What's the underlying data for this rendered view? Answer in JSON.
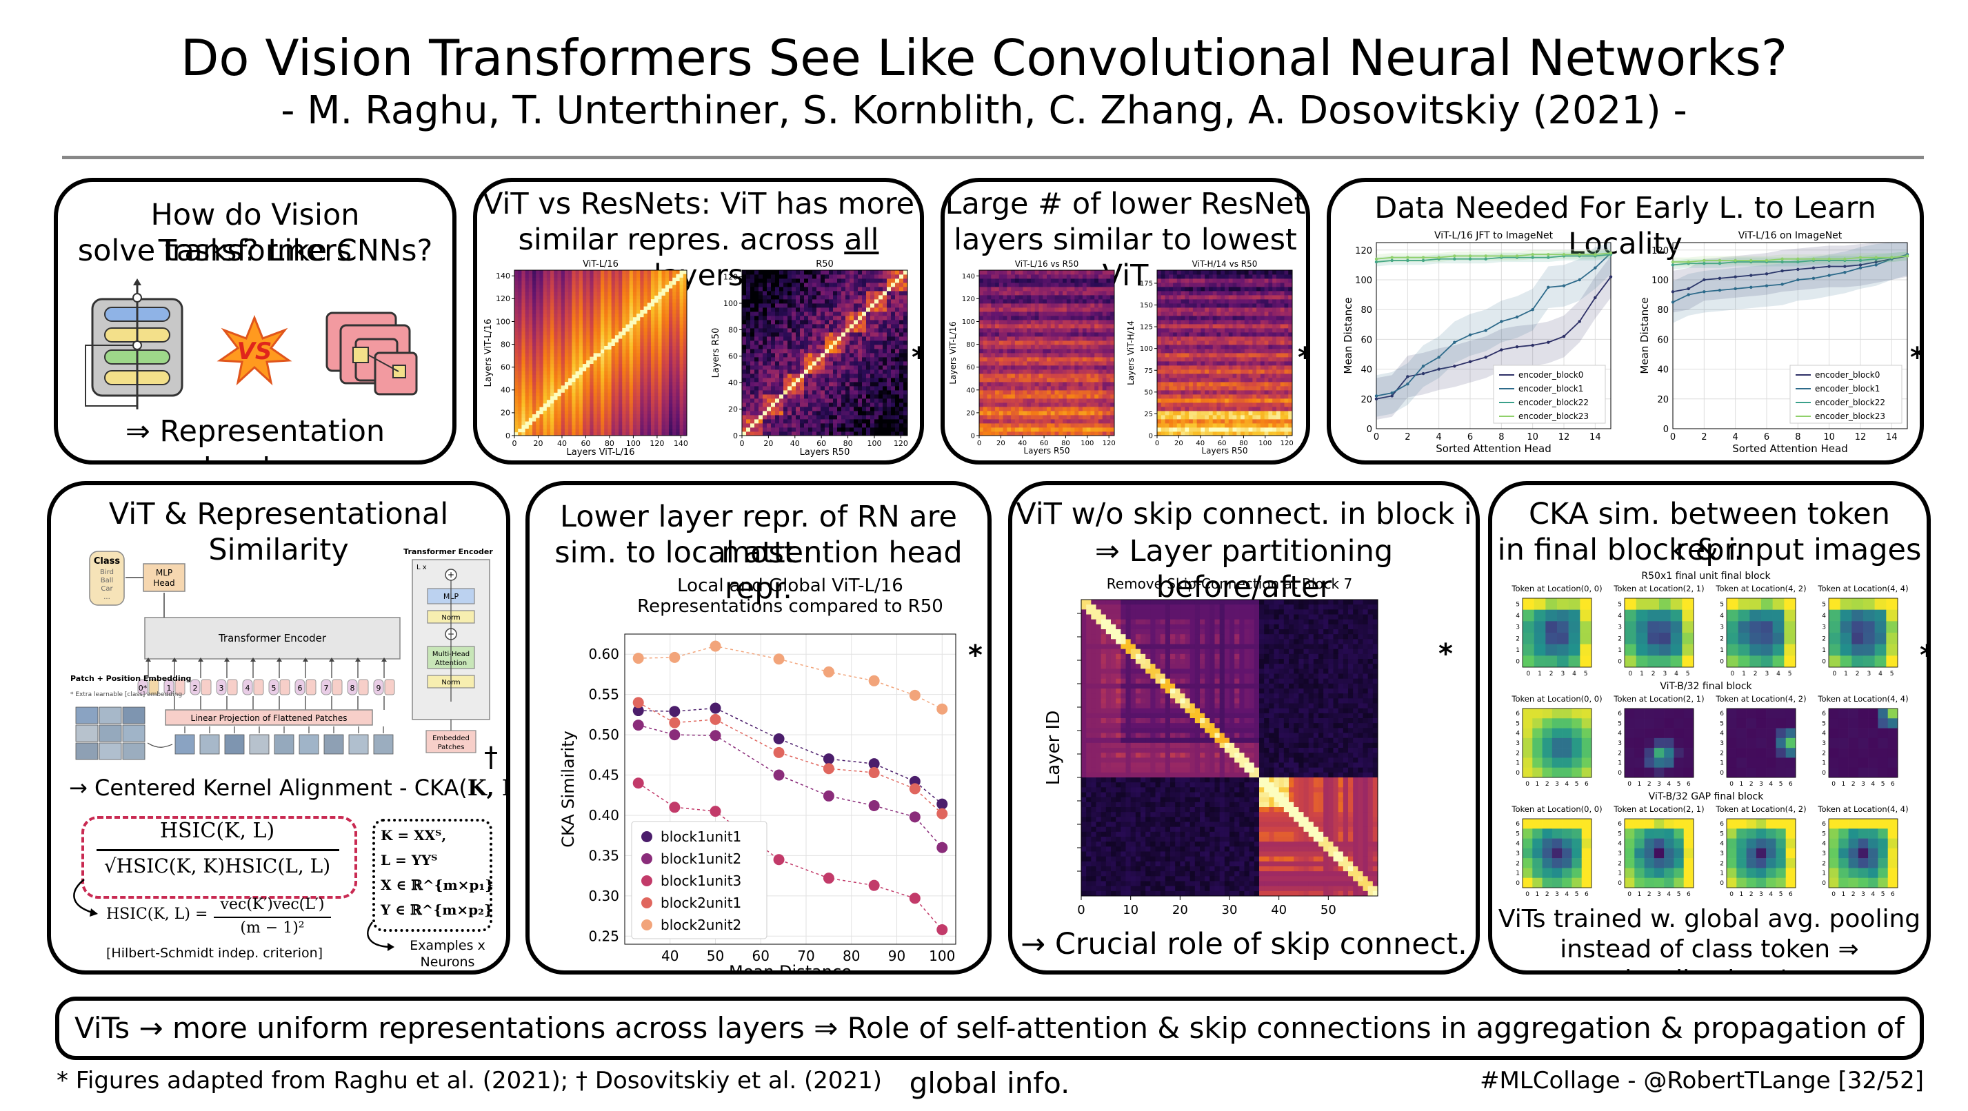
{
  "header": {
    "title": "Do Vision Transformers See Like Convolutional Neural Networks?",
    "authors": "- M. Raghu, T. Unterthiner, S. Kornblith, C. Zhang, A. Dosovitskiy (2021) -"
  },
  "panels": {
    "p1": {
      "title_l1": "How do Vision Transformers",
      "title_l2": "solve tasks? Like CNNs?",
      "vs": "VS",
      "caption": "⇒ Representation structure"
    },
    "p2": {
      "title_l1": "ViT vs ResNets: ViT has more",
      "title_l2_pre": "similar repres. across ",
      "title_l2_u": "all",
      "title_l2_post": " layers",
      "left_title": "ViT-L/16",
      "left_xlabel": "Layers ViT-L/16",
      "left_ylabel": "Layers ViT-L/16",
      "right_title": "R50",
      "right_xlabel": "Layers R50",
      "right_ylabel": "Layers R50",
      "star": "*"
    },
    "p3": {
      "title_l1": "Large # of lower ResNet",
      "title_l2": "layers similar to lowest ViT",
      "left_title": "ViT-L/16 vs R50",
      "left_xlabel": "Layers R50",
      "left_ylabel": "Layers ViT-L/16",
      "right_title": "ViT-H/14 vs R50",
      "right_xlabel": "Layers R50",
      "right_ylabel": "Layers ViT-H/14",
      "star": "*"
    },
    "p4": {
      "title": "Data Needed For Early L. to Learn Locality",
      "star": "*"
    },
    "p5": {
      "title": "ViT & Representational Similarity",
      "diagram": {
        "class_box": "Class",
        "class_items": [
          "Bird",
          "Ball",
          "Car",
          "..."
        ],
        "mlp_head": "MLP Head",
        "transformer_encoder": "Transformer Encoder",
        "patch_embedding": "Patch + Position Embedding",
        "extra_learnable": "* Extra learnable [class] embedding",
        "linear_projection": "Linear Projection of Flattened Patches",
        "te_title": "Transformer Encoder",
        "lx": "L x",
        "mlp": "MLP",
        "norm": "Norm",
        "mha": "Multi-Head Attention",
        "embedded_patches": "Embedded Patches",
        "tokens": [
          "0*",
          "1",
          "2",
          "3",
          "4",
          "5",
          "6",
          "7",
          "8",
          "9"
        ]
      },
      "dagger": "†",
      "cka_line_pre": "→ Centered Kernel Alignment - CKA(",
      "cka_line_kl": "K, L",
      "cka_line_post": "):",
      "frac_num": "HSIC(K, L)",
      "frac_den": "√HSIC(K, K)HSIC(L, L)",
      "hsic_lhs": "HSIC(K, L) =",
      "hsic_num": "vec(K′)vec(L′)",
      "hsic_den": "(m − 1)²",
      "hsic_note": "[Hilbert-Schmidt indep. criterion]",
      "defs": [
        "K = XXᵀ,",
        "L = YYᵀ",
        "X ∈ ℝ^{m×p₁}",
        "Y ∈ ℝ^{m×p₂}"
      ],
      "examples": "Examples x",
      "neurons": "Neurons"
    },
    "p6": {
      "title_l1": "Lower layer repr. of RN are most",
      "title_l2": "sim. to local attention head repr.",
      "star": "*"
    },
    "p7": {
      "title_l1": "ViT w/o skip connect. in block i",
      "title_l2": "⇒ Layer partitioning before/after",
      "caption": "→ Crucial role of skip connect.",
      "star": "*"
    },
    "p8": {
      "title_l1": "CKA sim. between token repr.",
      "title_l2": "in final block & input images",
      "caption_l1": "ViTs trained w. global avg. pooling",
      "caption_l2": "instead of class token ⇒ localization ↓",
      "star": "*"
    }
  },
  "bottom": {
    "summary": "ViTs → more uniform representations across layers ⇒ Role of self-attention & skip connections in aggregation & propagation of global info.",
    "footnote": "* Figures adapted from Raghu et al. (2021); † Dosovitskiy et al. (2021)",
    "signature": "#MLCollage - @RobertTLange [32/52]"
  },
  "chart_data": [
    {
      "id": "heatmap-vitl16",
      "type": "heatmap",
      "title": "ViT-L/16",
      "xlabel": "Layers ViT-L/16",
      "ylabel": "Layers ViT-L/16",
      "xticks": [
        0,
        20,
        40,
        60,
        80,
        100,
        120,
        140
      ],
      "yticks": [
        0,
        20,
        40,
        60,
        80,
        100,
        120,
        140
      ],
      "xlim": [
        0,
        145
      ],
      "ylim": [
        0,
        145
      ]
    },
    {
      "id": "heatmap-r50",
      "type": "heatmap",
      "title": "R50",
      "xlabel": "Layers R50",
      "ylabel": "Layers R50",
      "xticks": [
        0,
        20,
        40,
        60,
        80,
        100,
        120
      ],
      "yticks": [
        0,
        20,
        40,
        60,
        80,
        100,
        120
      ],
      "xlim": [
        0,
        125
      ],
      "ylim": [
        0,
        125
      ]
    },
    {
      "id": "heatmap-vitl16-vs-r50",
      "type": "heatmap",
      "title": "ViT-L/16 vs R50",
      "xlabel": "Layers R50",
      "ylabel": "Layers ViT-L/16",
      "xticks": [
        0,
        20,
        40,
        60,
        80,
        100,
        120
      ],
      "yticks": [
        0,
        20,
        40,
        60,
        80,
        100,
        120,
        140
      ],
      "xlim": [
        0,
        125
      ],
      "ylim": [
        0,
        145
      ]
    },
    {
      "id": "heatmap-vith14-vs-r50",
      "type": "heatmap",
      "title": "ViT-H/14 vs R50",
      "xlabel": "Layers R50",
      "ylabel": "Layers ViT-H/14",
      "xticks": [
        0,
        20,
        40,
        60,
        80,
        100,
        120
      ],
      "yticks": [
        0,
        25,
        50,
        75,
        100,
        125,
        150,
        175
      ],
      "xlim": [
        0,
        125
      ],
      "ylim": [
        0,
        190
      ]
    },
    {
      "id": "line-jft",
      "type": "line",
      "title": "ViT-L/16 JFT to ImageNet",
      "xlabel": "Sorted Attention Head",
      "ylabel": "Mean Distance",
      "xlim": [
        0,
        15
      ],
      "ylim": [
        0,
        125
      ],
      "xticks": [
        0,
        2,
        4,
        6,
        8,
        10,
        12,
        14
      ],
      "yticks": [
        0,
        20,
        40,
        60,
        80,
        100,
        120
      ],
      "legend": "bottom-right",
      "x": [
        0,
        1,
        2,
        3,
        4,
        5,
        6,
        7,
        8,
        9,
        10,
        11,
        12,
        13,
        14,
        15
      ],
      "series": [
        {
          "name": "encoder_block0",
          "color": "#2c2f66",
          "values": [
            20,
            22,
            35,
            37,
            40,
            42,
            45,
            48,
            53,
            55,
            56,
            58,
            62,
            72,
            88,
            102
          ]
        },
        {
          "name": "encoder_block1",
          "color": "#2d6a8a",
          "values": [
            22,
            24,
            30,
            42,
            48,
            58,
            63,
            66,
            72,
            75,
            80,
            95,
            96,
            100,
            108,
            118
          ]
        },
        {
          "name": "encoder_block22",
          "color": "#3aa08a",
          "values": [
            112,
            113,
            113,
            113,
            114,
            114,
            114,
            114,
            115,
            115,
            115,
            115,
            116,
            116,
            116,
            117
          ]
        },
        {
          "name": "encoder_block23",
          "color": "#8fd06a",
          "values": [
            114,
            115,
            115,
            115,
            115,
            116,
            116,
            116,
            116,
            116,
            117,
            117,
            117,
            117,
            117,
            118
          ]
        }
      ]
    },
    {
      "id": "line-imagenet",
      "type": "line",
      "title": "ViT-L/16 on ImageNet",
      "xlabel": "Sorted Attention Head",
      "ylabel": "Mean Distance",
      "xlim": [
        0,
        15
      ],
      "ylim": [
        0,
        125
      ],
      "xticks": [
        0,
        2,
        4,
        6,
        8,
        10,
        12,
        14
      ],
      "yticks": [
        0,
        20,
        40,
        60,
        80,
        100,
        120
      ],
      "legend": "bottom-right",
      "x": [
        0,
        1,
        2,
        3,
        4,
        5,
        6,
        7,
        8,
        9,
        10,
        11,
        12,
        13,
        14,
        15
      ],
      "series": [
        {
          "name": "encoder_block0",
          "color": "#2c2f66",
          "values": [
            92,
            94,
            100,
            101,
            102,
            103,
            104,
            106,
            107,
            108,
            109,
            109,
            110,
            112,
            114,
            116
          ]
        },
        {
          "name": "encoder_block1",
          "color": "#2d6a8a",
          "values": [
            85,
            90,
            92,
            93,
            94,
            95,
            96,
            97,
            100,
            101,
            103,
            105,
            108,
            110,
            114,
            117
          ]
        },
        {
          "name": "encoder_block22",
          "color": "#3aa08a",
          "values": [
            110,
            111,
            111,
            111,
            112,
            112,
            112,
            112,
            112,
            113,
            113,
            113,
            113,
            114,
            115,
            116
          ]
        },
        {
          "name": "encoder_block23",
          "color": "#8fd06a",
          "values": [
            112,
            112,
            113,
            113,
            113,
            113,
            113,
            114,
            114,
            114,
            114,
            114,
            115,
            115,
            115,
            116
          ]
        }
      ]
    },
    {
      "id": "scatter-cka",
      "type": "scatter",
      "title": "Local and Global ViT-L/16",
      "subtitle": "Representations compared to R50",
      "xlabel": "Mean Distance",
      "ylabel": "CKA Similarity",
      "xlim": [
        30,
        103
      ],
      "ylim": [
        0.24,
        0.625
      ],
      "xticks": [
        40,
        50,
        60,
        70,
        80,
        90,
        100
      ],
      "yticks": [
        0.25,
        0.3,
        0.35,
        0.4,
        0.45,
        0.5,
        0.55,
        0.6
      ],
      "legend": "bottom-left",
      "x": [
        33,
        41,
        50,
        64,
        75,
        85,
        94,
        100
      ],
      "series": [
        {
          "name": "block1unit1",
          "color": "#4b1d6b",
          "values": [
            0.53,
            0.529,
            0.533,
            0.495,
            0.47,
            0.464,
            0.442,
            0.414
          ]
        },
        {
          "name": "block1unit2",
          "color": "#8a2c7a",
          "values": [
            0.512,
            0.5,
            0.499,
            0.45,
            0.424,
            0.412,
            0.398,
            0.36
          ]
        },
        {
          "name": "block1unit3",
          "color": "#c23a69",
          "values": [
            0.44,
            0.41,
            0.405,
            0.345,
            0.322,
            0.313,
            0.297,
            0.258
          ]
        },
        {
          "name": "block2unit1",
          "color": "#e0665e",
          "values": [
            0.54,
            0.515,
            0.519,
            0.478,
            0.458,
            0.453,
            0.433,
            0.402
          ]
        },
        {
          "name": "block2unit2",
          "color": "#f2a47a",
          "values": [
            0.595,
            0.596,
            0.61,
            0.594,
            0.578,
            0.567,
            0.549,
            0.532
          ]
        }
      ]
    },
    {
      "id": "heatmap-skip",
      "type": "heatmap",
      "title": "Remove Skip-Connection at Block 7",
      "xlabel": "",
      "ylabel": "Layer ID",
      "xticks": [
        0,
        10,
        20,
        30,
        40,
        50
      ],
      "xlim": [
        0,
        60
      ],
      "ylim": [
        0,
        60
      ]
    },
    {
      "id": "token-grids",
      "type": "heatmap",
      "rows": [
        {
          "title": "R50x1 final unit final block",
          "cells": [
            "Token at Location(0, 0)",
            "Token at Location(2, 1)",
            "Token at Location(4, 2)",
            "Token at Location(4, 4)"
          ],
          "ticks": [
            0,
            1,
            2,
            3,
            4,
            5
          ]
        },
        {
          "title": "ViT-B/32 final block",
          "cells": [
            "Token at Location(0, 0)",
            "Token at Location(2, 1)",
            "Token at Location(4, 2)",
            "Token at Location(4, 4)"
          ],
          "ticks": [
            0,
            1,
            2,
            3,
            4,
            5,
            6
          ]
        },
        {
          "title": "ViT-B/32 GAP final block",
          "cells": [
            "Token at Location(0, 0)",
            "Token at Location(2, 1)",
            "Token at Location(4, 2)",
            "Token at Location(4, 4)"
          ],
          "ticks": [
            0,
            1,
            2,
            3,
            4,
            5,
            6
          ]
        }
      ]
    }
  ]
}
